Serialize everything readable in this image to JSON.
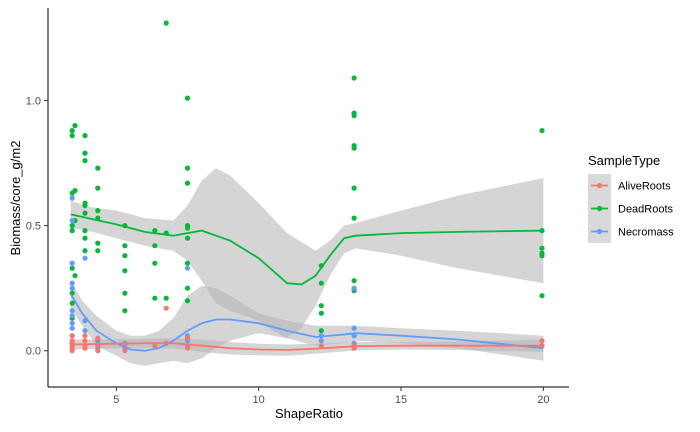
{
  "chart_data": {
    "type": "scatter",
    "xlabel": "ShapeRatio",
    "ylabel": "Biomass/core_g/m2",
    "xlim": [
      2.6,
      20.9
    ],
    "ylim": [
      -0.145,
      1.37
    ],
    "x_ticks": [
      5,
      10,
      15,
      20
    ],
    "y_ticks": [
      0.0,
      0.5,
      1.0
    ],
    "x_tick_labels": [
      "5",
      "10",
      "15",
      "20"
    ],
    "y_tick_labels": [
      "0.0",
      "0.5",
      "1.0"
    ],
    "grid": false,
    "legend": {
      "title": "SampleType",
      "position": "right",
      "entries": [
        "AliveRoots",
        "DeadRoots",
        "Necromass"
      ]
    },
    "series": [
      {
        "name": "DeadRoots",
        "color": "#00ba38",
        "points": [
          [
            3.45,
            0.88
          ],
          [
            3.45,
            0.86
          ],
          [
            3.45,
            0.63
          ],
          [
            3.45,
            0.5
          ],
          [
            3.45,
            0.48
          ],
          [
            3.45,
            0.33
          ],
          [
            3.45,
            0.23
          ],
          [
            3.45,
            0.19
          ],
          [
            3.45,
            0.13
          ],
          [
            3.55,
            0.9
          ],
          [
            3.55,
            0.64
          ],
          [
            3.55,
            0.52
          ],
          [
            3.55,
            0.3
          ],
          [
            3.9,
            0.86
          ],
          [
            3.9,
            0.79
          ],
          [
            3.9,
            0.76
          ],
          [
            3.9,
            0.59
          ],
          [
            3.9,
            0.58
          ],
          [
            3.9,
            0.55
          ],
          [
            3.9,
            0.48
          ],
          [
            3.9,
            0.45
          ],
          [
            3.9,
            0.4
          ],
          [
            4.35,
            0.73
          ],
          [
            4.35,
            0.65
          ],
          [
            4.35,
            0.56
          ],
          [
            4.35,
            0.53
          ],
          [
            4.35,
            0.43
          ],
          [
            4.35,
            0.4
          ],
          [
            5.3,
            0.5
          ],
          [
            5.3,
            0.42
          ],
          [
            5.3,
            0.38
          ],
          [
            5.3,
            0.32
          ],
          [
            5.3,
            0.23
          ],
          [
            5.3,
            0.16
          ],
          [
            6.35,
            0.48
          ],
          [
            6.35,
            0.42
          ],
          [
            6.35,
            0.35
          ],
          [
            6.35,
            0.21
          ],
          [
            6.75,
            1.31
          ],
          [
            6.75,
            0.47
          ],
          [
            6.75,
            0.21
          ],
          [
            7.5,
            1.01
          ],
          [
            7.5,
            0.73
          ],
          [
            7.5,
            0.67
          ],
          [
            7.5,
            0.5
          ],
          [
            7.5,
            0.49
          ],
          [
            7.5,
            0.45
          ],
          [
            7.5,
            0.35
          ],
          [
            7.5,
            0.25
          ],
          [
            7.5,
            0.2
          ],
          [
            12.2,
            0.34
          ],
          [
            12.2,
            0.27
          ],
          [
            12.2,
            0.18
          ],
          [
            12.2,
            0.15
          ],
          [
            12.2,
            0.08
          ],
          [
            13.35,
            1.09
          ],
          [
            13.35,
            0.95
          ],
          [
            13.35,
            0.94
          ],
          [
            13.35,
            0.82
          ],
          [
            13.35,
            0.81
          ],
          [
            13.35,
            0.65
          ],
          [
            13.35,
            0.53
          ],
          [
            13.35,
            0.28
          ],
          [
            13.35,
            0.24
          ],
          [
            13.35,
            0.09
          ],
          [
            19.95,
            0.88
          ],
          [
            19.95,
            0.48
          ],
          [
            19.95,
            0.41
          ],
          [
            19.95,
            0.39
          ],
          [
            19.95,
            0.38
          ],
          [
            19.95,
            0.22
          ]
        ],
        "smooth": [
          [
            3.4,
            0.545
          ],
          [
            4.0,
            0.53
          ],
          [
            5.0,
            0.505
          ],
          [
            6.0,
            0.475
          ],
          [
            7.0,
            0.46
          ],
          [
            7.5,
            0.47
          ],
          [
            8.0,
            0.48
          ],
          [
            9.0,
            0.44
          ],
          [
            10.0,
            0.37
          ],
          [
            10.5,
            0.32
          ],
          [
            11.0,
            0.27
          ],
          [
            11.5,
            0.265
          ],
          [
            12.0,
            0.3
          ],
          [
            12.5,
            0.38
          ],
          [
            13.0,
            0.45
          ],
          [
            13.4,
            0.46
          ],
          [
            15.0,
            0.47
          ],
          [
            17.0,
            0.475
          ],
          [
            20.0,
            0.48
          ]
        ],
        "band_upper": [
          [
            3.4,
            0.6
          ],
          [
            4.0,
            0.575
          ],
          [
            5.0,
            0.56
          ],
          [
            6.0,
            0.53
          ],
          [
            7.0,
            0.52
          ],
          [
            7.5,
            0.58
          ],
          [
            8.0,
            0.68
          ],
          [
            8.5,
            0.73
          ],
          [
            9.0,
            0.7
          ],
          [
            10.0,
            0.59
          ],
          [
            11.0,
            0.47
          ],
          [
            12.0,
            0.4
          ],
          [
            12.5,
            0.44
          ],
          [
            13.0,
            0.5
          ],
          [
            13.4,
            0.51
          ],
          [
            15.0,
            0.56
          ],
          [
            17.0,
            0.62
          ],
          [
            20.0,
            0.69
          ]
        ],
        "band_lower": [
          [
            3.4,
            0.49
          ],
          [
            4.0,
            0.48
          ],
          [
            5.0,
            0.45
          ],
          [
            6.0,
            0.42
          ],
          [
            7.0,
            0.4
          ],
          [
            7.5,
            0.36
          ],
          [
            8.0,
            0.28
          ],
          [
            8.5,
            0.19
          ],
          [
            9.0,
            0.16
          ],
          [
            10.0,
            0.12
          ],
          [
            10.5,
            0.08
          ],
          [
            11.0,
            0.05
          ],
          [
            11.5,
            0.09
          ],
          [
            12.0,
            0.18
          ],
          [
            12.5,
            0.3
          ],
          [
            13.0,
            0.39
          ],
          [
            13.4,
            0.41
          ],
          [
            15.0,
            0.38
          ],
          [
            17.0,
            0.33
          ],
          [
            20.0,
            0.27
          ]
        ]
      },
      {
        "name": "Necromass",
        "color": "#619cff",
        "points": [
          [
            3.45,
            0.61
          ],
          [
            3.45,
            0.52
          ],
          [
            3.45,
            0.35
          ],
          [
            3.45,
            0.27
          ],
          [
            3.45,
            0.25
          ],
          [
            3.45,
            0.16
          ],
          [
            3.45,
            0.14
          ],
          [
            3.45,
            0.11
          ],
          [
            3.45,
            0.09
          ],
          [
            3.45,
            0.06
          ],
          [
            3.45,
            0.03
          ],
          [
            3.9,
            0.37
          ],
          [
            3.9,
            0.12
          ],
          [
            3.9,
            0.08
          ],
          [
            3.9,
            0.02
          ],
          [
            4.35,
            0.04
          ],
          [
            4.35,
            0.01
          ],
          [
            5.3,
            0.03
          ],
          [
            5.3,
            0.01
          ],
          [
            7.5,
            0.33
          ],
          [
            7.5,
            0.06
          ],
          [
            7.5,
            0.04
          ],
          [
            7.5,
            0.02
          ],
          [
            12.2,
            0.06
          ],
          [
            12.2,
            0.04
          ],
          [
            13.35,
            0.25
          ],
          [
            13.35,
            0.09
          ],
          [
            13.35,
            0.06
          ],
          [
            13.35,
            0.03
          ],
          [
            19.95,
            0.02
          ]
        ],
        "smooth": [
          [
            3.4,
            0.225
          ],
          [
            3.8,
            0.15
          ],
          [
            4.3,
            0.08
          ],
          [
            5.0,
            0.03
          ],
          [
            5.5,
            0.005
          ],
          [
            6.0,
            0.0
          ],
          [
            6.5,
            0.01
          ],
          [
            7.0,
            0.04
          ],
          [
            7.5,
            0.08
          ],
          [
            8.0,
            0.11
          ],
          [
            8.5,
            0.125
          ],
          [
            9.0,
            0.125
          ],
          [
            10.0,
            0.11
          ],
          [
            11.0,
            0.08
          ],
          [
            12.0,
            0.055
          ],
          [
            13.0,
            0.065
          ],
          [
            13.4,
            0.07
          ],
          [
            15.0,
            0.06
          ],
          [
            17.0,
            0.045
          ],
          [
            20.0,
            0.01
          ]
        ],
        "band_upper": [
          [
            3.4,
            0.28
          ],
          [
            3.8,
            0.2
          ],
          [
            4.3,
            0.14
          ],
          [
            5.0,
            0.08
          ],
          [
            5.5,
            0.06
          ],
          [
            6.0,
            0.06
          ],
          [
            6.5,
            0.08
          ],
          [
            7.0,
            0.13
          ],
          [
            7.5,
            0.22
          ],
          [
            8.0,
            0.26
          ],
          [
            8.5,
            0.25
          ],
          [
            9.0,
            0.22
          ],
          [
            10.0,
            0.15
          ],
          [
            11.0,
            0.12
          ],
          [
            12.0,
            0.1
          ],
          [
            13.0,
            0.1
          ],
          [
            13.4,
            0.1
          ],
          [
            15.0,
            0.09
          ],
          [
            17.0,
            0.08
          ],
          [
            20.0,
            0.06
          ]
        ],
        "band_lower": [
          [
            3.4,
            0.17
          ],
          [
            3.8,
            0.1
          ],
          [
            4.3,
            0.02
          ],
          [
            5.0,
            -0.02
          ],
          [
            5.5,
            -0.05
          ],
          [
            6.0,
            -0.06
          ],
          [
            6.5,
            -0.05
          ],
          [
            7.0,
            -0.04
          ],
          [
            7.5,
            -0.05
          ],
          [
            8.0,
            -0.03
          ],
          [
            8.5,
            0.01
          ],
          [
            9.0,
            0.04
          ],
          [
            10.0,
            0.07
          ],
          [
            11.0,
            0.05
          ],
          [
            12.0,
            0.02
          ],
          [
            13.0,
            0.03
          ],
          [
            13.4,
            0.04
          ],
          [
            15.0,
            0.03
          ],
          [
            17.0,
            0.01
          ],
          [
            20.0,
            -0.04
          ]
        ]
      },
      {
        "name": "AliveRoots",
        "color": "#f8766d",
        "points": [
          [
            3.45,
            0.06
          ],
          [
            3.45,
            0.04
          ],
          [
            3.45,
            0.03
          ],
          [
            3.45,
            0.02
          ],
          [
            3.45,
            0.01
          ],
          [
            3.45,
            0.0
          ],
          [
            3.9,
            0.06
          ],
          [
            3.9,
            0.04
          ],
          [
            3.9,
            0.02
          ],
          [
            3.9,
            0.01
          ],
          [
            4.35,
            0.05
          ],
          [
            4.35,
            0.02
          ],
          [
            4.35,
            0.0
          ],
          [
            5.3,
            0.02
          ],
          [
            5.3,
            0.0
          ],
          [
            6.35,
            0.02
          ],
          [
            6.75,
            0.17
          ],
          [
            6.75,
            0.03
          ],
          [
            7.5,
            0.05
          ],
          [
            7.5,
            0.01
          ],
          [
            12.2,
            0.02
          ],
          [
            13.35,
            0.02
          ],
          [
            13.35,
            0.01
          ],
          [
            19.95,
            0.04
          ],
          [
            19.95,
            0.02
          ]
        ],
        "smooth": [
          [
            3.4,
            0.025
          ],
          [
            5.0,
            0.028
          ],
          [
            6.0,
            0.03
          ],
          [
            7.0,
            0.03
          ],
          [
            8.0,
            0.02
          ],
          [
            9.0,
            0.01
          ],
          [
            10.0,
            0.005
          ],
          [
            11.0,
            0.003
          ],
          [
            12.0,
            0.008
          ],
          [
            13.4,
            0.018
          ],
          [
            15.0,
            0.02
          ],
          [
            17.0,
            0.02
          ],
          [
            20.0,
            0.02
          ]
        ],
        "band_upper": [
          [
            3.4,
            0.045
          ],
          [
            5.0,
            0.045
          ],
          [
            6.0,
            0.048
          ],
          [
            7.0,
            0.05
          ],
          [
            8.0,
            0.045
          ],
          [
            9.0,
            0.035
          ],
          [
            10.0,
            0.028
          ],
          [
            11.0,
            0.025
          ],
          [
            12.0,
            0.028
          ],
          [
            13.4,
            0.035
          ],
          [
            15.0,
            0.035
          ],
          [
            17.0,
            0.037
          ],
          [
            20.0,
            0.045
          ]
        ],
        "band_lower": [
          [
            3.4,
            0.005
          ],
          [
            5.0,
            0.01
          ],
          [
            6.0,
            0.012
          ],
          [
            7.0,
            0.01
          ],
          [
            8.0,
            -0.005
          ],
          [
            9.0,
            -0.015
          ],
          [
            10.0,
            -0.018
          ],
          [
            11.0,
            -0.02
          ],
          [
            12.0,
            -0.012
          ],
          [
            13.4,
            0.001
          ],
          [
            15.0,
            0.005
          ],
          [
            17.0,
            0.003
          ],
          [
            20.0,
            -0.005
          ]
        ]
      }
    ],
    "band_color": "#b3b3b3"
  }
}
